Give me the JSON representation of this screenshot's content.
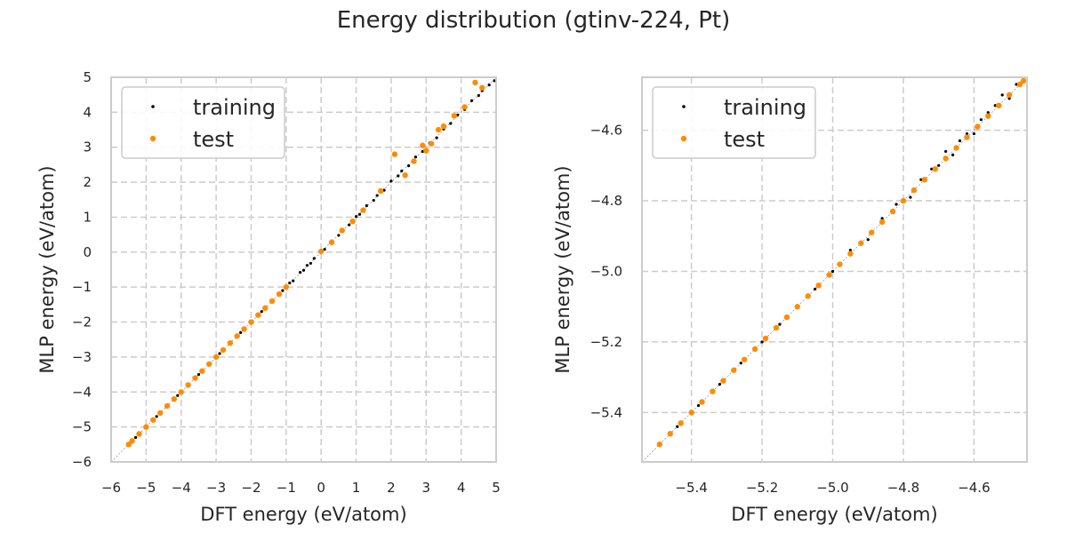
{
  "figure": {
    "title": "Energy distribution (gtinv-224, Pt)"
  },
  "chart_data": [
    {
      "type": "scatter",
      "title": "",
      "xlabel": "DFT energy (eV/atom)",
      "ylabel": "MLP energy (eV/atom)",
      "xlim": [
        -6,
        5
      ],
      "ylim": [
        -6,
        5
      ],
      "xticks": [
        -6,
        -5,
        -4,
        -3,
        -2,
        -1,
        0,
        1,
        2,
        3,
        4,
        5
      ],
      "yticks": [
        -6,
        -5,
        -4,
        -3,
        -2,
        -1,
        0,
        1,
        2,
        3,
        4,
        5
      ],
      "xtick_labels": [
        "−6",
        "−5",
        "−4",
        "−3",
        "−2",
        "−1",
        "0",
        "1",
        "2",
        "3",
        "4",
        "5"
      ],
      "ytick_labels": [
        "−6",
        "−5",
        "−4",
        "−3",
        "−2",
        "−1",
        "0",
        "1",
        "2",
        "3",
        "4",
        "5"
      ],
      "grid": true,
      "diagonal_reference": true,
      "legend_position": "top-left",
      "series": [
        {
          "name": "training",
          "color": "#000000",
          "x": [
            -5.5,
            -5.3,
            -5.0,
            -4.7,
            -4.4,
            -4.1,
            -3.8,
            -3.5,
            -3.2,
            -2.9,
            -2.6,
            -2.3,
            -2.0,
            -1.7,
            -1.4,
            -1.1,
            -0.9,
            -0.8,
            -0.6,
            -0.5,
            -0.4,
            -0.3,
            -0.2,
            0.0,
            0.1,
            0.3,
            0.5,
            0.6,
            0.8,
            1.0,
            1.1,
            1.3,
            1.5,
            1.6,
            1.8,
            2.0,
            2.2,
            2.3,
            2.5,
            2.7,
            2.9,
            3.1,
            3.3,
            3.5,
            3.7,
            3.9,
            4.1,
            4.3,
            4.5,
            4.6,
            4.8,
            4.95
          ],
          "y": [
            -5.5,
            -5.3,
            -5.0,
            -4.7,
            -4.4,
            -4.1,
            -3.8,
            -3.5,
            -3.2,
            -2.9,
            -2.6,
            -2.3,
            -2.0,
            -1.7,
            -1.4,
            -1.1,
            -0.88,
            -0.82,
            -0.58,
            -0.52,
            -0.38,
            -0.32,
            -0.18,
            0.02,
            0.08,
            0.32,
            0.48,
            0.63,
            0.78,
            1.02,
            1.08,
            1.33,
            1.48,
            1.62,
            1.77,
            2.03,
            2.18,
            2.32,
            2.47,
            2.72,
            2.88,
            3.12,
            3.27,
            3.52,
            3.68,
            3.92,
            4.08,
            4.33,
            4.48,
            4.62,
            4.78,
            4.9
          ]
        },
        {
          "name": "test",
          "color": "#ff8c00",
          "x": [
            -5.5,
            -5.4,
            -5.2,
            -5.0,
            -4.8,
            -4.6,
            -4.4,
            -4.2,
            -4.0,
            -3.8,
            -3.6,
            -3.4,
            -3.2,
            -3.0,
            -2.8,
            -2.6,
            -2.4,
            -2.2,
            -2.0,
            -1.8,
            -1.6,
            -1.4,
            -1.2,
            -1.0,
            0.0,
            0.3,
            0.6,
            0.9,
            1.2,
            1.7,
            2.1,
            2.4,
            2.65,
            2.9,
            3.0,
            3.15,
            3.35,
            3.5,
            3.8,
            4.1,
            4.4,
            4.6
          ],
          "y": [
            -5.5,
            -5.4,
            -5.2,
            -5.0,
            -4.8,
            -4.6,
            -4.4,
            -4.2,
            -4.0,
            -3.8,
            -3.6,
            -3.4,
            -3.2,
            -3.0,
            -2.8,
            -2.6,
            -2.4,
            -2.2,
            -2.0,
            -1.8,
            -1.6,
            -1.4,
            -1.2,
            -1.0,
            0.02,
            0.28,
            0.62,
            0.88,
            1.2,
            1.75,
            2.8,
            2.2,
            2.6,
            3.05,
            2.9,
            3.1,
            3.5,
            3.6,
            3.9,
            4.15,
            4.85,
            4.7
          ]
        }
      ]
    },
    {
      "type": "scatter",
      "title": "",
      "xlabel": "DFT energy (eV/atom)",
      "ylabel": "MLP energy (eV/atom)",
      "xlim": [
        -5.54,
        -4.45
      ],
      "ylim": [
        -5.54,
        -4.45
      ],
      "xticks": [
        -5.4,
        -5.2,
        -5.0,
        -4.8,
        -4.6
      ],
      "yticks": [
        -5.4,
        -5.2,
        -5.0,
        -4.8,
        -4.6
      ],
      "xtick_labels": [
        "−5.4",
        "−5.2",
        "−5.0",
        "−4.8",
        "−4.6"
      ],
      "ytick_labels": [
        "−5.4",
        "−5.2",
        "−5.0",
        "−4.8",
        "−4.6"
      ],
      "grid": true,
      "diagonal_reference": true,
      "legend_position": "top-left",
      "series": [
        {
          "name": "training",
          "color": "#000000",
          "x": [
            -5.49,
            -5.44,
            -5.38,
            -5.32,
            -5.26,
            -5.2,
            -5.15,
            -5.1,
            -5.05,
            -5.0,
            -4.95,
            -4.9,
            -4.86,
            -4.82,
            -4.78,
            -4.75,
            -4.72,
            -4.7,
            -4.68,
            -4.66,
            -4.64,
            -4.62,
            -4.6,
            -4.58,
            -4.56,
            -4.54,
            -4.52,
            -4.5,
            -4.48,
            -4.46
          ],
          "y": [
            -5.49,
            -5.44,
            -5.38,
            -5.32,
            -5.26,
            -5.2,
            -5.15,
            -5.1,
            -5.05,
            -5.0,
            -4.94,
            -4.91,
            -4.85,
            -4.81,
            -4.79,
            -4.74,
            -4.71,
            -4.7,
            -4.66,
            -4.67,
            -4.63,
            -4.61,
            -4.61,
            -4.57,
            -4.55,
            -4.53,
            -4.5,
            -4.51,
            -4.47,
            -4.46
          ]
        },
        {
          "name": "test",
          "color": "#ff8c00",
          "x": [
            -5.49,
            -5.46,
            -5.43,
            -5.4,
            -5.37,
            -5.34,
            -5.31,
            -5.28,
            -5.25,
            -5.22,
            -5.19,
            -5.16,
            -5.13,
            -5.1,
            -5.07,
            -5.04,
            -5.01,
            -4.98,
            -4.95,
            -4.92,
            -4.89,
            -4.86,
            -4.83,
            -4.8,
            -4.77,
            -4.74,
            -4.71,
            -4.68,
            -4.65,
            -4.62,
            -4.59,
            -4.56,
            -4.53,
            -4.5,
            -4.47,
            -4.46
          ],
          "y": [
            -5.49,
            -5.46,
            -5.43,
            -5.4,
            -5.37,
            -5.34,
            -5.31,
            -5.28,
            -5.25,
            -5.22,
            -5.19,
            -5.16,
            -5.13,
            -5.1,
            -5.07,
            -5.04,
            -5.01,
            -4.98,
            -4.95,
            -4.92,
            -4.89,
            -4.86,
            -4.83,
            -4.8,
            -4.77,
            -4.74,
            -4.71,
            -4.68,
            -4.65,
            -4.62,
            -4.59,
            -4.56,
            -4.53,
            -4.5,
            -4.47,
            -4.46
          ]
        }
      ]
    }
  ]
}
